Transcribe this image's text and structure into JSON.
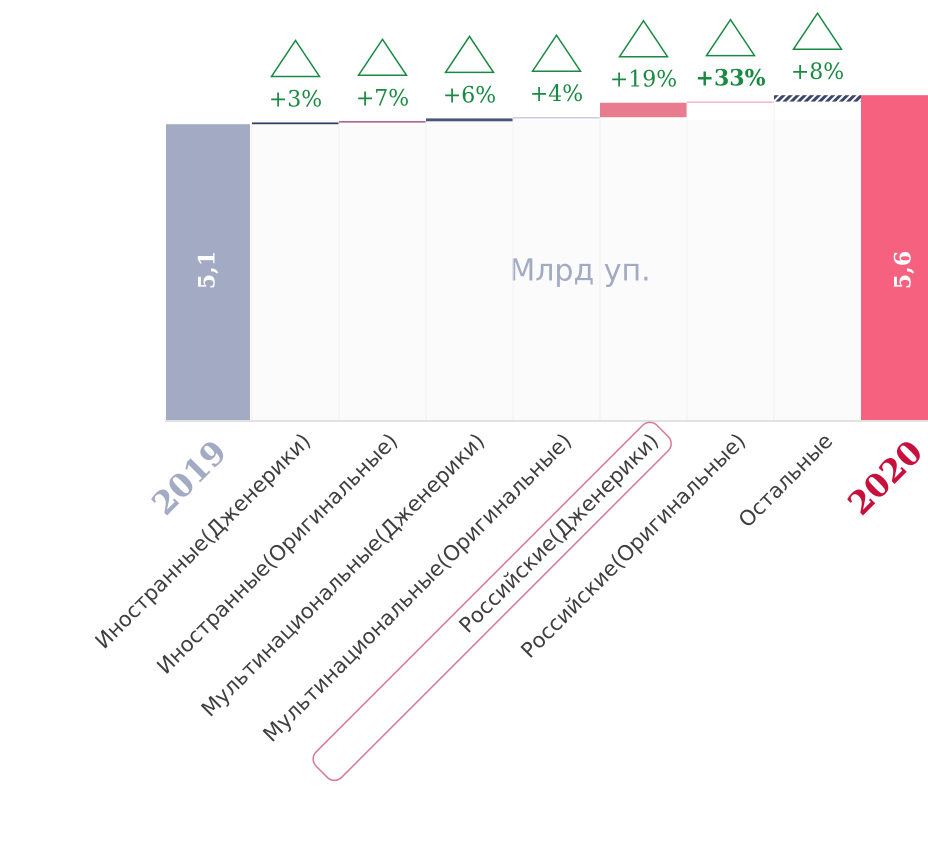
{
  "chart_data": {
    "type": "waterfall",
    "ylabel": "Млрд уп.",
    "categories": [
      "2019",
      "Иностранные(Дженерики)",
      "Иностранные(Оригинальные)",
      "Мультинациональные(Дженерики)",
      "Мультинациональные(Оригинальные)",
      "Российские(Дженерики)",
      "Российские(Оригинальные)",
      "Остальные",
      "2020"
    ],
    "measure": [
      "total",
      "relative",
      "relative",
      "relative",
      "relative",
      "relative",
      "relative",
      "relative",
      "total"
    ],
    "values": [
      5.1,
      0.03,
      0.02,
      0.05,
      0.02,
      0.25,
      0.02,
      0.11,
      5.6
    ],
    "value_labels": [
      "5,1",
      null,
      null,
      null,
      null,
      null,
      null,
      null,
      "5,6"
    ],
    "change_labels": [
      null,
      "+3%",
      "+7%",
      "+6%",
      "+4%",
      "+19%",
      "+33%",
      "+8%",
      null
    ],
    "colors": [
      "#a3abc4",
      "#2f3d63",
      "#8e2d5e",
      "#4b5779",
      "#b9c0d4",
      "#e87b8e",
      "#f4a3b0",
      "#3b4668",
      "#f5617f"
    ],
    "hatched": [
      false,
      false,
      false,
      false,
      false,
      false,
      false,
      true,
      false
    ],
    "highlight": "Российские(Дженерики)",
    "ylim": [
      0,
      5.8
    ]
  }
}
